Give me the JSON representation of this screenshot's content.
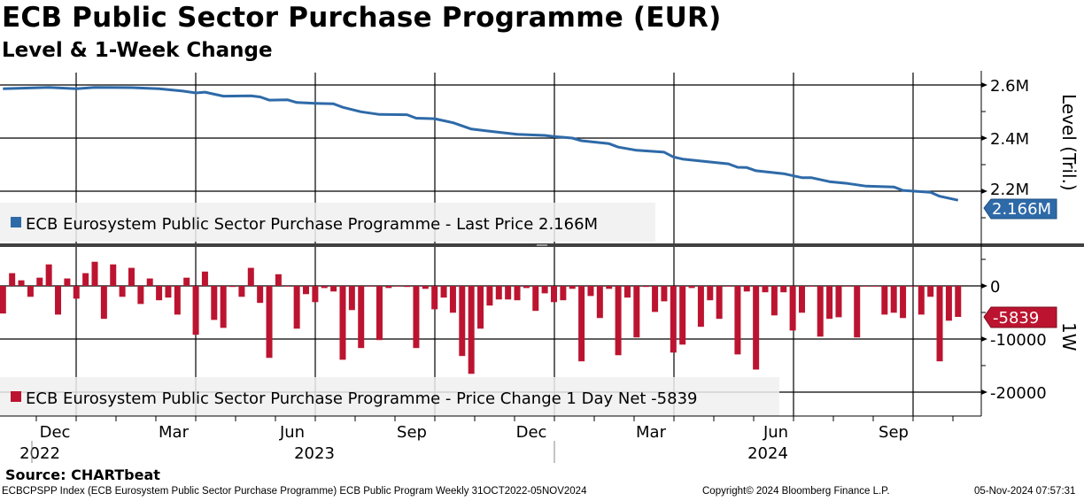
{
  "title": "ECB Public Sector Purchase Programme (EUR)",
  "subtitle": "Level & 1-Week Change",
  "source": "Source: CHARTbeat",
  "footer": {
    "description": "ECBCPSPP Index (ECB Eurosystem Public Sector Purchase Programme) ECB Public Program  Weekly 31OCT2022-05NOV2024",
    "copyright": "Copyright© 2024 Bloomberg Finance L.P.",
    "timestamp": "05-Nov-2024 07:57:31"
  },
  "colors": {
    "line": "#2e6aa8",
    "bar": "#bc1430",
    "legend_bg": "#f0f0f0",
    "divider": "#404040"
  },
  "chart_data": [
    {
      "type": "line",
      "title": "Level",
      "ylabel": "Level (Tril.)",
      "yticks": [
        "2.6M",
        "2.4M",
        "2.2M"
      ],
      "ytick_values": [
        2.6,
        2.4,
        2.2
      ],
      "ylim": [
        2.11,
        2.65
      ],
      "x_unit": "week index since 31-Oct-2022",
      "legend": "ECB Eurosystem Public Sector Purchase Programme - Last Price 2.166M",
      "legend_position": "bottom-left",
      "last_value_label": "2.166M",
      "last_value": 2.166,
      "series": [
        {
          "name": "ECB Eurosystem Public Sector Purchase Programme",
          "points": [
            [
              0,
              2.586
            ],
            [
              5,
              2.591
            ],
            [
              8,
              2.586
            ],
            [
              10,
              2.591
            ],
            [
              14,
              2.59
            ],
            [
              17,
              2.586
            ],
            [
              19.6,
              2.577
            ],
            [
              21,
              2.57
            ],
            [
              22,
              2.573
            ],
            [
              24,
              2.558
            ],
            [
              27,
              2.559
            ],
            [
              28,
              2.555
            ],
            [
              29,
              2.543
            ],
            [
              31,
              2.544
            ],
            [
              32,
              2.534
            ],
            [
              34,
              2.531
            ],
            [
              36,
              2.529
            ],
            [
              37,
              2.516
            ],
            [
              39,
              2.499
            ],
            [
              41,
              2.489
            ],
            [
              44,
              2.488
            ],
            [
              45,
              2.475
            ],
            [
              47,
              2.473
            ],
            [
              49,
              2.458
            ],
            [
              51,
              2.434
            ],
            [
              53,
              2.426
            ],
            [
              56,
              2.414
            ],
            [
              59,
              2.41
            ],
            [
              60,
              2.406
            ],
            [
              62,
              2.4
            ],
            [
              63,
              2.39
            ],
            [
              66,
              2.379
            ],
            [
              67,
              2.366
            ],
            [
              69,
              2.354
            ],
            [
              72,
              2.347
            ],
            [
              73,
              2.329
            ],
            [
              74,
              2.321
            ],
            [
              77,
              2.31
            ],
            [
              79,
              2.303
            ],
            [
              80,
              2.29
            ],
            [
              81,
              2.289
            ],
            [
              82,
              2.277
            ],
            [
              85,
              2.266
            ],
            [
              87,
              2.251
            ],
            [
              88,
              2.251
            ],
            [
              90,
              2.236
            ],
            [
              92,
              2.229
            ],
            [
              94,
              2.219
            ],
            [
              97,
              2.216
            ],
            [
              98,
              2.203
            ],
            [
              101,
              2.196
            ],
            [
              102,
              2.181
            ],
            [
              104,
              2.166
            ]
          ]
        }
      ]
    },
    {
      "type": "bar",
      "title": "1-Week Change",
      "ylabel": "1W",
      "yticks": [
        "0",
        "-10000",
        "-20000"
      ],
      "ytick_values": [
        0,
        -10000,
        -20000
      ],
      "ylim": [
        -24500,
        7300
      ],
      "legend": "ECB Eurosystem Public Sector Purchase Programme - Price Change 1 Day Net -5839",
      "legend_position": "bottom-left",
      "last_value_label": "-5839",
      "last_value": -5839,
      "values": [
        -5200,
        2400,
        1050,
        -2050,
        1550,
        4050,
        -5400,
        1400,
        -2400,
        2400,
        4550,
        -6200,
        4050,
        -2050,
        3400,
        -3400,
        1400,
        -2700,
        -2200,
        -5400,
        1550,
        -9200,
        2700,
        -6400,
        -7900,
        -200,
        -2050,
        3400,
        -3200,
        -13550,
        2200,
        -50,
        -8050,
        -1550,
        -3050,
        -400,
        -1050,
        -13900,
        -4550,
        -11700,
        -50,
        -10200,
        -400,
        -50,
        -200,
        -11700,
        -550,
        -4400,
        -2200,
        -5050,
        -13200,
        -16550,
        -8050,
        -3700,
        -2550,
        -2550,
        -2700,
        -400,
        -4700,
        -1400,
        -3050,
        -2700,
        -550,
        -14200,
        -1900,
        -6050,
        -550,
        -13050,
        -2200,
        -9700,
        -200,
        -4900,
        -2900,
        -12550,
        -11050,
        -400,
        -7700,
        -2700,
        -6200,
        -50,
        -12900,
        -1050,
        -15750,
        -1200,
        -5550,
        -1200,
        -8400,
        -5050,
        -50,
        -9550,
        -6200,
        -5900,
        -50,
        -9700,
        -50,
        -50,
        -5400,
        -5050,
        -6050,
        -50,
        -5400,
        -2050,
        -14200,
        -6550,
        -5839
      ]
    }
  ],
  "x_axis": {
    "months": [
      "Dec",
      "Mar",
      "Jun",
      "Sep",
      "Dec",
      "Mar",
      "Jun",
      "Sep"
    ],
    "years": [
      "2022",
      "2023",
      "2024"
    ]
  }
}
